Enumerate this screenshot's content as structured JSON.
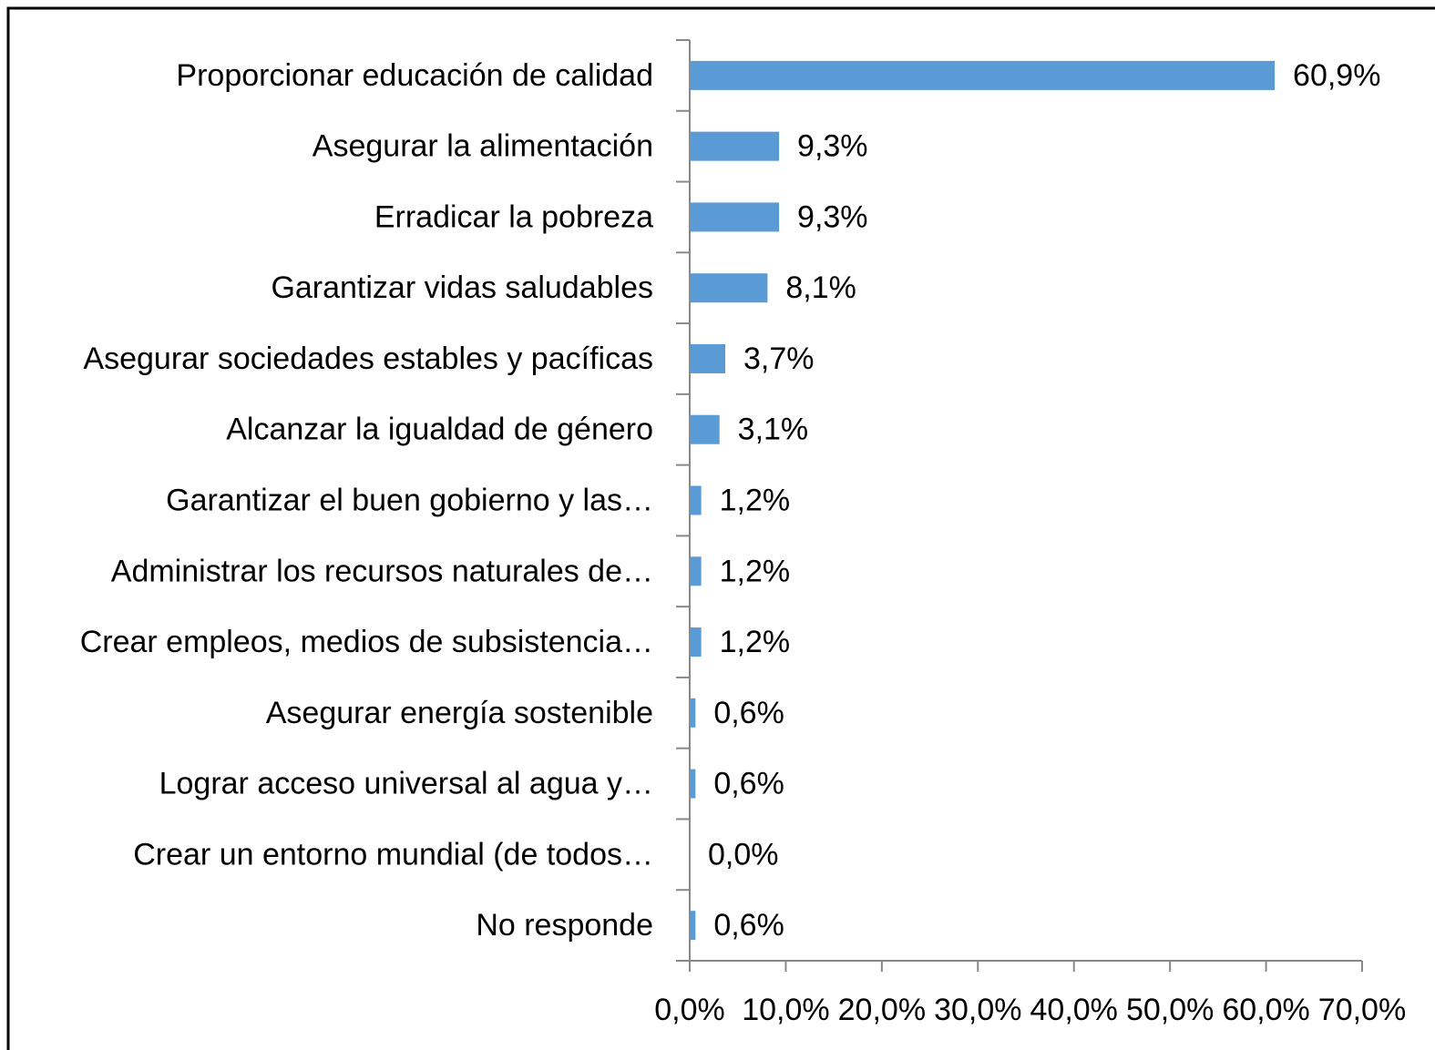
{
  "chart_data": {
    "type": "bar",
    "orientation": "horizontal",
    "categories": [
      "Proporcionar educación de calidad",
      "Asegurar la alimentación",
      "Erradicar la pobreza",
      "Garantizar vidas saludables",
      "Asegurar sociedades estables y pacíficas",
      "Alcanzar la igualdad de género",
      "Garantizar el buen gobierno y las…",
      "Administrar los recursos naturales de…",
      "Crear empleos, medios de subsistencia…",
      "Asegurar energía sostenible",
      "Lograr acceso universal al agua y…",
      "Crear un entorno mundial (de todos…",
      "No responde"
    ],
    "values": [
      60.9,
      9.3,
      9.3,
      8.1,
      3.7,
      3.1,
      1.2,
      1.2,
      1.2,
      0.6,
      0.6,
      0.0,
      0.6
    ],
    "value_labels": [
      "60,9%",
      "9,3%",
      "9,3%",
      "8,1%",
      "3,7%",
      "3,1%",
      "1,2%",
      "1,2%",
      "1,2%",
      "0,6%",
      "0,6%",
      "0,0%",
      "0,6%"
    ],
    "color": "#5b9bd5",
    "xlim": [
      0,
      70
    ],
    "xticks": [
      {
        "value": 0,
        "label": "0,0%"
      },
      {
        "value": 10,
        "label": "10,0%"
      },
      {
        "value": 20,
        "label": "20,0%"
      },
      {
        "value": 30,
        "label": "30,0%"
      },
      {
        "value": 40,
        "label": "40,0%"
      },
      {
        "value": 50,
        "label": "50,0%"
      },
      {
        "value": 60,
        "label": "60,0%"
      },
      {
        "value": 70,
        "label": "70,0%"
      }
    ]
  }
}
